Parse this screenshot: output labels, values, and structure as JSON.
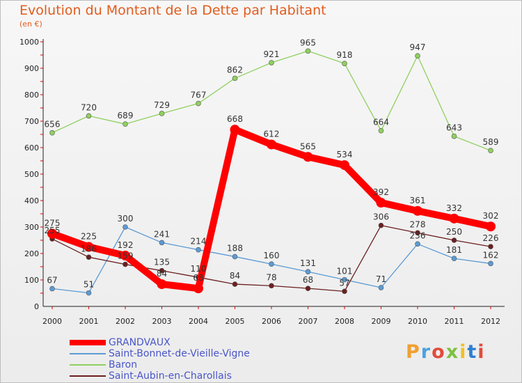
{
  "chart_data": {
    "type": "line",
    "title": "Evolution du Montant de la Dette par Habitant",
    "subtitle": "(en €)",
    "xlabel": "",
    "ylabel": "",
    "x": [
      "2000",
      "2001",
      "2002",
      "2003",
      "2004",
      "2005",
      "2006",
      "2007",
      "2008",
      "2009",
      "2010",
      "2011",
      "2012"
    ],
    "ylim": [
      0,
      1000
    ],
    "yticks": [
      0,
      100,
      200,
      300,
      400,
      500,
      600,
      700,
      800,
      900,
      1000
    ],
    "grid": false,
    "legend_position": "bottom-left",
    "series": [
      {
        "name": "Baron",
        "color": "#8fd05f",
        "values": [
          656,
          720,
          689,
          729,
          767,
          862,
          921,
          965,
          918,
          664,
          947,
          643,
          589
        ]
      },
      {
        "name": "Saint-Bonnet-de-Vieille-Vigne",
        "color": "#5b9bd5",
        "values": [
          67,
          51,
          300,
          241,
          214,
          188,
          160,
          131,
          101,
          71,
          236,
          181,
          162
        ]
      },
      {
        "name": "Saint-Aubin-en-Charollais",
        "color": "#6b1f1f",
        "values": [
          255,
          186,
          159,
          135,
          110,
          84,
          78,
          68,
          57,
          306,
          278,
          250,
          226
        ]
      },
      {
        "name": "GRANDVAUX",
        "color": "#ff0000",
        "values": [
          275,
          225,
          192,
          84,
          68,
          668,
          612,
          565,
          534,
          392,
          361,
          332,
          302
        ]
      }
    ],
    "legend_order": [
      "GRANDVAUX",
      "Saint-Bonnet-de-Vieille-Vigne",
      "Baron",
      "Saint-Aubin-en-Charollais"
    ]
  },
  "logo": {
    "text": "Proxiti"
  }
}
